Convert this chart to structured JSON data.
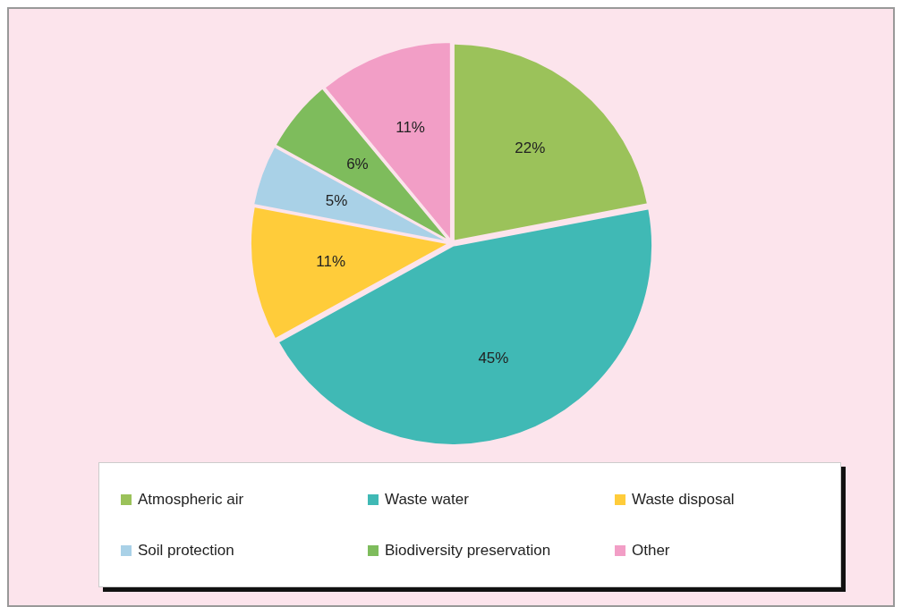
{
  "chart_data": {
    "type": "pie",
    "categories": [
      "Atmospheric air",
      "Waste water",
      "Waste disposal",
      "Soil protection",
      "Biodiversity preservation",
      "Other"
    ],
    "values": [
      22,
      45,
      11,
      5,
      6,
      11
    ],
    "colors": [
      "#9bc25a",
      "#40b9b5",
      "#ffcc3a",
      "#a9d1e7",
      "#7ebc5c",
      "#f29ec6"
    ],
    "value_labels": [
      "22%",
      "45%",
      "11%",
      "5%",
      "6%",
      "11%"
    ],
    "legend": "bottom"
  }
}
